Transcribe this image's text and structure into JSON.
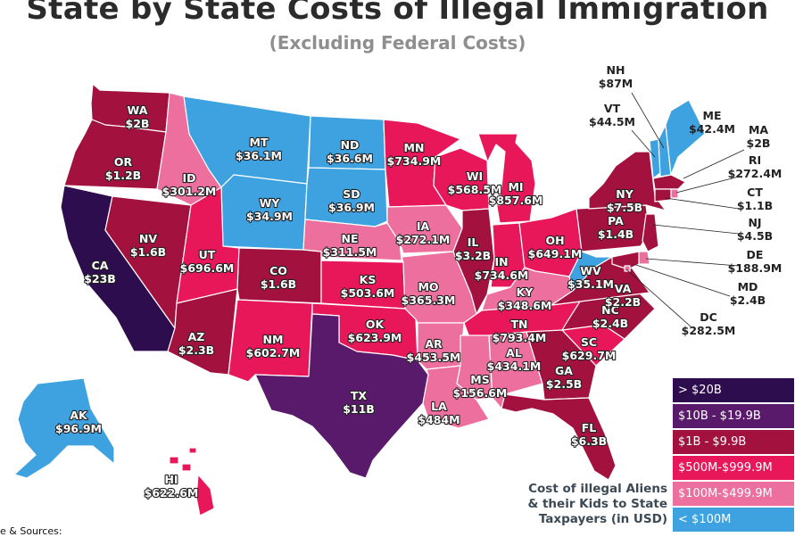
{
  "title": "State by State Costs of Illegal Immigration",
  "subtitle": "(Excluding Federal Costs)",
  "caption_lines": [
    "Cost of illegal Aliens",
    "& their Kids to State",
    "Taxpayers (in USD)"
  ],
  "sources_label": "e & Sources:",
  "colors": {
    "gt20b": "#2e0d4e",
    "b10to20": "#5a1a6b",
    "b1to10": "#a3123f",
    "m500to999": "#e8175a",
    "m100to499": "#ec6f9d",
    "lt100m": "#3ea2e0"
  },
  "legend": [
    {
      "key": "gt20b",
      "label": "> $20B"
    },
    {
      "key": "b10to20",
      "label": "$10B - $19.9B"
    },
    {
      "key": "b1to10",
      "label": "$1B - $9.9B"
    },
    {
      "key": "m500to999",
      "label": "$500M-$999.9M"
    },
    {
      "key": "m100to499",
      "label": "$100M-$499.9M"
    },
    {
      "key": "lt100m",
      "label": "< $100M"
    }
  ],
  "states": [
    {
      "abbr": "WA",
      "value": "$2B",
      "tier": "b1to10"
    },
    {
      "abbr": "OR",
      "value": "$1.2B",
      "tier": "b1to10"
    },
    {
      "abbr": "CA",
      "value": "$23B",
      "tier": "gt20b"
    },
    {
      "abbr": "NV",
      "value": "$1.6B",
      "tier": "b1to10"
    },
    {
      "abbr": "ID",
      "value": "$301.2M",
      "tier": "m100to499"
    },
    {
      "abbr": "MT",
      "value": "$36.1M",
      "tier": "lt100m"
    },
    {
      "abbr": "WY",
      "value": "$34.9M",
      "tier": "lt100m"
    },
    {
      "abbr": "UT",
      "value": "$696.6M",
      "tier": "m500to999"
    },
    {
      "abbr": "AZ",
      "value": "$2.3B",
      "tier": "b1to10"
    },
    {
      "abbr": "CO",
      "value": "$1.6B",
      "tier": "b1to10"
    },
    {
      "abbr": "NM",
      "value": "$602.7M",
      "tier": "m500to999"
    },
    {
      "abbr": "ND",
      "value": "$36.6M",
      "tier": "lt100m"
    },
    {
      "abbr": "SD",
      "value": "$36.9M",
      "tier": "lt100m"
    },
    {
      "abbr": "NE",
      "value": "$311.5M",
      "tier": "m100to499"
    },
    {
      "abbr": "KS",
      "value": "$503.6M",
      "tier": "m500to999"
    },
    {
      "abbr": "OK",
      "value": "$623.9M",
      "tier": "m500to999"
    },
    {
      "abbr": "TX",
      "value": "$11B",
      "tier": "b10to20"
    },
    {
      "abbr": "MN",
      "value": "$734.9M",
      "tier": "m500to999"
    },
    {
      "abbr": "IA",
      "value": "$272.1M",
      "tier": "m100to499"
    },
    {
      "abbr": "MO",
      "value": "$365.3M",
      "tier": "m100to499"
    },
    {
      "abbr": "AR",
      "value": "$453.5M",
      "tier": "m100to499"
    },
    {
      "abbr": "LA",
      "value": "$484M",
      "tier": "m100to499"
    },
    {
      "abbr": "WI",
      "value": "$568.5M",
      "tier": "m500to999"
    },
    {
      "abbr": "IL",
      "value": "$3.2B",
      "tier": "b1to10"
    },
    {
      "abbr": "MI",
      "value": "$857.6M",
      "tier": "m500to999"
    },
    {
      "abbr": "IN",
      "value": "$734.6M",
      "tier": "m500to999"
    },
    {
      "abbr": "OH",
      "value": "$649.1M",
      "tier": "m500to999"
    },
    {
      "abbr": "KY",
      "value": "$348.6M",
      "tier": "m100to499"
    },
    {
      "abbr": "TN",
      "value": "$793.4M",
      "tier": "m500to999"
    },
    {
      "abbr": "MS",
      "value": "$156.6M",
      "tier": "m100to499"
    },
    {
      "abbr": "AL",
      "value": "$434.1M",
      "tier": "m100to499"
    },
    {
      "abbr": "GA",
      "value": "$2.5B",
      "tier": "b1to10"
    },
    {
      "abbr": "FL",
      "value": "$6.3B",
      "tier": "b1to10"
    },
    {
      "abbr": "SC",
      "value": "$629.7M",
      "tier": "m500to999"
    },
    {
      "abbr": "NC",
      "value": "$2.4B",
      "tier": "b1to10"
    },
    {
      "abbr": "VA",
      "value": "$2.2B",
      "tier": "b1to10"
    },
    {
      "abbr": "WV",
      "value": "$35.1M",
      "tier": "lt100m"
    },
    {
      "abbr": "PA",
      "value": "$1.4B",
      "tier": "b1to10"
    },
    {
      "abbr": "NY",
      "value": "$7.5B",
      "tier": "b1to10"
    },
    {
      "abbr": "VT",
      "value": "$44.5M",
      "tier": "lt100m"
    },
    {
      "abbr": "NH",
      "value": "$87M",
      "tier": "lt100m"
    },
    {
      "abbr": "ME",
      "value": "$42.4M",
      "tier": "lt100m"
    },
    {
      "abbr": "MA",
      "value": "$2B",
      "tier": "b1to10"
    },
    {
      "abbr": "RI",
      "value": "$272.4M",
      "tier": "m100to499"
    },
    {
      "abbr": "CT",
      "value": "$1.1B",
      "tier": "b1to10"
    },
    {
      "abbr": "NJ",
      "value": "$4.5B",
      "tier": "b1to10"
    },
    {
      "abbr": "DE",
      "value": "$188.9M",
      "tier": "m100to499"
    },
    {
      "abbr": "MD",
      "value": "$2.4B",
      "tier": "b1to10"
    },
    {
      "abbr": "DC",
      "value": "$282.5M",
      "tier": "m100to499"
    },
    {
      "abbr": "AK",
      "value": "$96.9M",
      "tier": "lt100m"
    },
    {
      "abbr": "HI",
      "value": "$622.6M",
      "tier": "m500to999"
    }
  ]
}
